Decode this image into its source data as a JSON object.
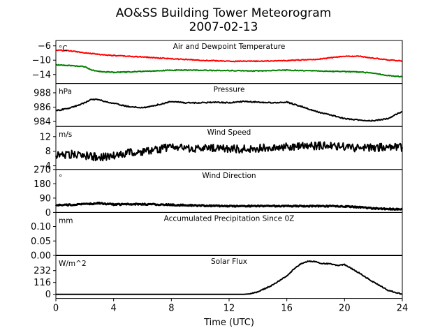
{
  "figure": {
    "title_line1": "AO&SS Building Tower Meteorogram",
    "title_line2": "2007-02-13",
    "xlabel": "Time (UTC)"
  },
  "chart_data": [
    {
      "type": "line",
      "title": "Air and Dewpoint Temperature",
      "unit": "°C",
      "x_ticks": [
        0,
        4,
        8,
        12,
        16,
        20,
        24
      ],
      "xlim": [
        0,
        24
      ],
      "ylim": [
        -16.5,
        -4.5
      ],
      "y_ticks": [
        -6,
        -10,
        -14
      ],
      "y_tick_labels": [
        "−6",
        "−10",
        "−14"
      ],
      "series": [
        {
          "color": "#ff0000",
          "x": [
            0,
            1,
            2,
            3,
            4,
            6,
            8,
            10,
            12,
            14,
            16,
            18,
            20,
            21,
            22,
            23,
            24
          ],
          "y": [
            -7.2,
            -7.4,
            -7.9,
            -8.4,
            -8.7,
            -9.1,
            -9.6,
            -10.0,
            -10.3,
            -10.3,
            -10.1,
            -9.8,
            -8.9,
            -8.9,
            -9.4,
            -9.9,
            -10.2
          ]
        },
        {
          "color": "#008000",
          "x": [
            0,
            1,
            2,
            2.5,
            3,
            4,
            5,
            6,
            8,
            10,
            12,
            14,
            16,
            18,
            20,
            21,
            22,
            23,
            24
          ],
          "y": [
            -11.3,
            -11.5,
            -11.8,
            -12.8,
            -13.1,
            -13.4,
            -13.3,
            -13.1,
            -12.8,
            -12.8,
            -12.9,
            -13.0,
            -12.8,
            -13.0,
            -13.2,
            -13.3,
            -13.6,
            -14.3,
            -14.6
          ]
        }
      ]
    },
    {
      "type": "line",
      "title": "Pressure",
      "unit": "hPa",
      "xlim": [
        0,
        24
      ],
      "ylim": [
        983.3,
        989.3
      ],
      "y_ticks": [
        988,
        986,
        984
      ],
      "series": [
        {
          "color": "#000000",
          "x": [
            0,
            1,
            2,
            2.5,
            3,
            4,
            5,
            6,
            7,
            8,
            9,
            10,
            11,
            12,
            13,
            14,
            15,
            16,
            17,
            18,
            19,
            20,
            21,
            22,
            23,
            24
          ],
          "y": [
            985.5,
            985.9,
            986.6,
            987.1,
            987.0,
            986.5,
            986.1,
            985.9,
            986.3,
            986.8,
            986.6,
            986.6,
            986.7,
            986.6,
            986.8,
            986.7,
            986.6,
            986.7,
            986.1,
            985.4,
            984.9,
            984.4,
            984.2,
            984.1,
            984.4,
            985.4
          ]
        }
      ]
    },
    {
      "type": "line",
      "title": "Wind Speed",
      "unit": "m/s",
      "xlim": [
        0,
        24
      ],
      "ylim": [
        3,
        14.8
      ],
      "y_ticks": [
        12,
        8,
        4
      ],
      "series": [
        {
          "color": "#000000",
          "x": [
            0,
            1,
            2,
            3,
            4,
            5,
            6,
            7,
            8,
            9,
            10,
            11,
            12,
            13,
            14,
            15,
            16,
            17,
            18,
            19,
            20,
            21,
            22,
            23,
            24
          ],
          "y": [
            7.0,
            7.2,
            6.8,
            6.3,
            6.8,
            7.5,
            7.8,
            8.3,
            9.3,
            8.8,
            8.7,
            8.9,
            8.7,
            8.6,
            8.8,
            9.0,
            9.3,
            9.3,
            9.5,
            9.6,
            9.2,
            8.8,
            8.9,
            9.2,
            9.0
          ]
        }
      ]
    },
    {
      "type": "line",
      "title": "Wind Direction",
      "unit": "°",
      "xlim": [
        0,
        24
      ],
      "ylim": [
        0,
        270
      ],
      "y_ticks": [
        270,
        180,
        90,
        0
      ],
      "series": [
        {
          "color": "#000000",
          "x": [
            0,
            1,
            2,
            3,
            4,
            6,
            8,
            10,
            12,
            14,
            16,
            18,
            20,
            21,
            22,
            23,
            24
          ],
          "y": [
            45,
            48,
            52,
            58,
            50,
            52,
            48,
            43,
            40,
            40,
            40,
            40,
            38,
            33,
            25,
            22,
            20
          ]
        }
      ]
    },
    {
      "type": "line",
      "title": "Accumulated Precipitation Since 0Z",
      "unit": "mm",
      "xlim": [
        0,
        24
      ],
      "ylim": [
        0,
        0.1485
      ],
      "y_ticks": [
        0.1,
        0.05,
        0.0
      ],
      "y_tick_labels": [
        "0.10",
        "0.05",
        "0.00"
      ],
      "series": [
        {
          "color": "#000000",
          "x": [
            0,
            24
          ],
          "y": [
            0,
            0
          ]
        }
      ]
    },
    {
      "type": "line",
      "title": "Solar Flux",
      "unit": "W/m^2",
      "xlim": [
        0,
        24
      ],
      "ylim": [
        -40,
        380
      ],
      "y_ticks": [
        232,
        116,
        0
      ],
      "series": [
        {
          "color": "#000000",
          "x": [
            0,
            13,
            13.5,
            14,
            15,
            16,
            16.5,
            17,
            17.5,
            18,
            18.5,
            19,
            19.5,
            20,
            20.5,
            21,
            22,
            23,
            24
          ],
          "y": [
            0,
            0,
            5,
            25,
            90,
            180,
            250,
            300,
            325,
            320,
            300,
            300,
            280,
            290,
            250,
            210,
            120,
            40,
            0
          ]
        }
      ]
    }
  ]
}
